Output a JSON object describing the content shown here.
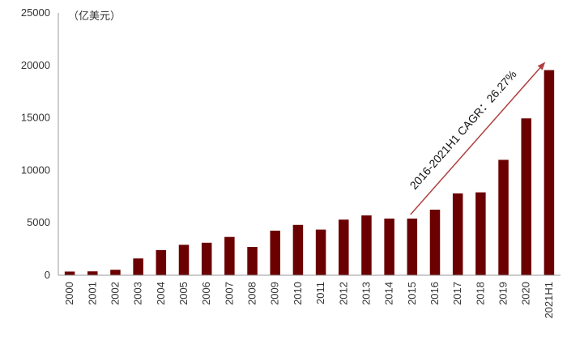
{
  "chart_data": {
    "type": "bar",
    "unit_label": "（亿美元）",
    "categories": [
      "2000",
      "2001",
      "2002",
      "2003",
      "2004",
      "2005",
      "2006",
      "2007",
      "2008",
      "2009",
      "2010",
      "2011",
      "2012",
      "2013",
      "2014",
      "2015",
      "2016",
      "2017",
      "2018",
      "2019",
      "2020",
      "2021H1"
    ],
    "values": [
      350,
      370,
      520,
      1600,
      2400,
      2900,
      3100,
      3650,
      2700,
      4250,
      4800,
      4350,
      5300,
      5700,
      5400,
      5400,
      6250,
      7800,
      7900,
      11000,
      14950,
      19550
    ],
    "ylim": [
      0,
      25000
    ],
    "yticks": [
      0,
      5000,
      10000,
      15000,
      20000,
      25000
    ],
    "annotation": {
      "text": "2016-2021H1 CAGR：26.27%",
      "from_category": "2015",
      "to_category": "2021H1"
    },
    "colors": {
      "bar": "#6b0000",
      "arrow": "#b04040",
      "axis": "#999999"
    }
  }
}
